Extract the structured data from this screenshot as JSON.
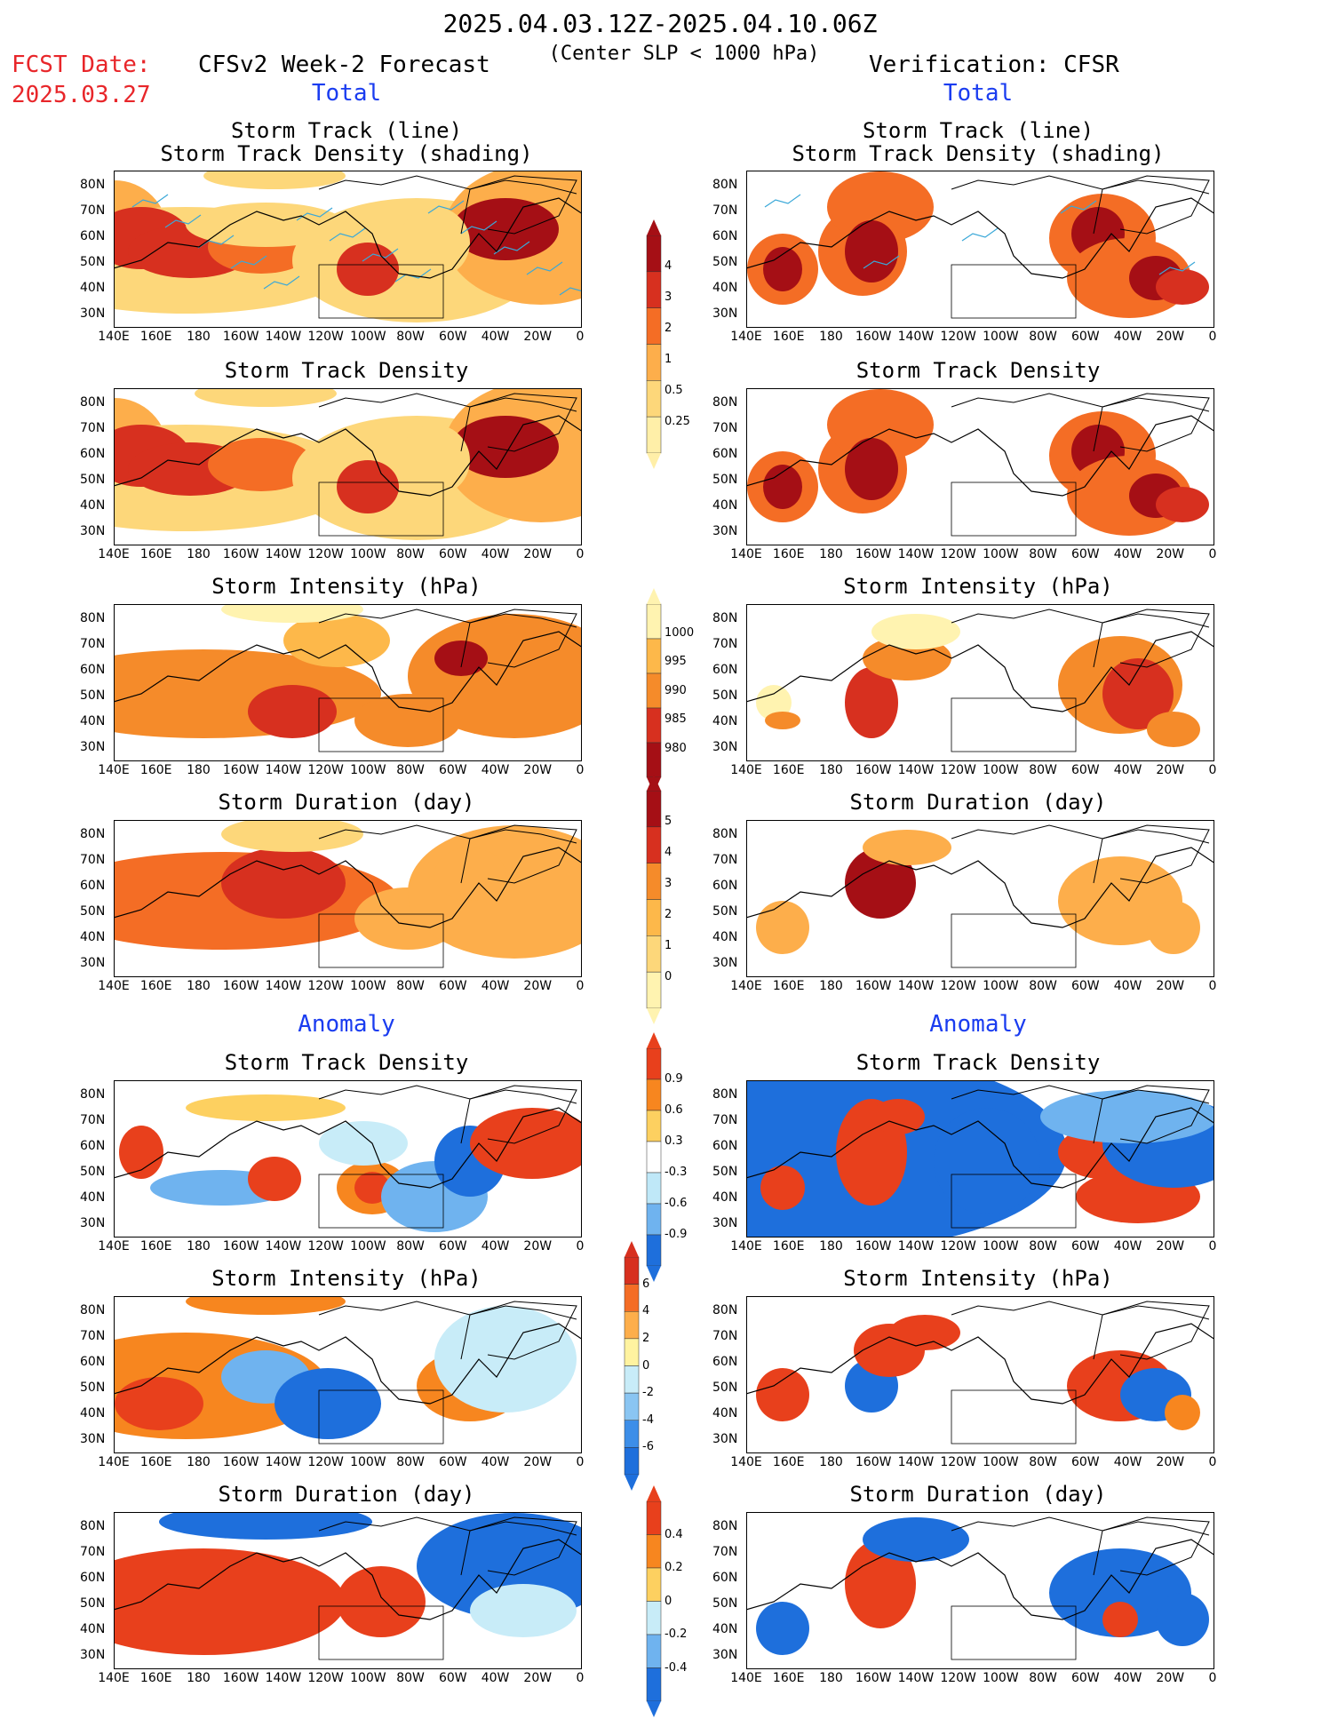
{
  "header": {
    "date_range": "2025.04.03.12Z-2025.04.10.06Z",
    "criterion": "(Center SLP < 1000 hPa)",
    "fcst_label": "FCST Date:",
    "fcst_date": "2025.03.27",
    "left_model": "CFSv2 Week-2 Forecast",
    "right_model": "Verification: CFSR",
    "total_left": "Total",
    "total_right": "Total",
    "anomaly_left": "Anomaly",
    "anomaly_right": "Anomaly"
  },
  "panel_titles": {
    "track_line": "Storm Track (line)",
    "track_density_shading": "Storm Track Density (shading)",
    "track_density": "Storm Track Density",
    "intensity": "Storm Intensity (hPa)",
    "duration": "Storm Duration (day)"
  },
  "axes": {
    "x_ticks": [
      "140E",
      "160E",
      "180",
      "160W",
      "140W",
      "120W",
      "100W",
      "80W",
      "60W",
      "40W",
      "20W",
      "0"
    ],
    "y_ticks": [
      "80N",
      "70N",
      "60N",
      "50N",
      "40N",
      "30N"
    ]
  },
  "colorbars": {
    "density": {
      "labels": [
        "4",
        "3",
        "2",
        "1",
        "0.5",
        "0.25"
      ],
      "colors": [
        "#a50f15",
        "#d7301f",
        "#f46d25",
        "#fdae4b",
        "#fdd77a",
        "#ffefa8"
      ]
    },
    "intensity": {
      "labels": [
        "1000",
        "995",
        "990",
        "985",
        "980"
      ],
      "colors": [
        "#fff3b0",
        "#fdb84a",
        "#f58b2a",
        "#d7301f",
        "#a50f15"
      ]
    },
    "duration": {
      "labels": [
        "5",
        "4",
        "3",
        "2",
        "1",
        "0"
      ],
      "colors": [
        "#a50f15",
        "#d7301f",
        "#f58b2a",
        "#fdb84a",
        "#fdd77a",
        "#fff3b0"
      ]
    },
    "anom_density": {
      "labels": [
        "0.9",
        "0.6",
        "0.3",
        "-0.3",
        "-0.6",
        "-0.9"
      ],
      "colors": [
        "#e8401c",
        "#f7861f",
        "#fdd060",
        "#ffffff",
        "#bfe8f8",
        "#6fb3ef",
        "#1e6fdc"
      ]
    },
    "anom_intensity": {
      "labels": [
        "6",
        "4",
        "2",
        "0",
        "-2",
        "-4",
        "-6"
      ],
      "colors": [
        "#d7301f",
        "#f46d25",
        "#fdae4b",
        "#fff3a0",
        "#c8ecf8",
        "#8ac5f2",
        "#3d8ee8",
        "#1e6fdc"
      ]
    },
    "anom_duration": {
      "labels": [
        "0.4",
        "0.2",
        "0",
        "-0.2",
        "-0.4"
      ],
      "colors": [
        "#e8401c",
        "#f7861f",
        "#fdd060",
        "#c8ecf8",
        "#6fb3ef",
        "#1e6fdc"
      ]
    }
  },
  "chart_data": [
    {
      "type": "heatmap",
      "panel": "fcst-total-track",
      "title": "Storm Track (line) Storm Track Density (shading)",
      "xlim": [
        "140E",
        "0"
      ],
      "ylim": [
        "25N",
        "85N"
      ]
    },
    {
      "type": "heatmap",
      "panel": "cfsr-total-track",
      "title": "Storm Track (line) Storm Track Density (shading)",
      "xlim": [
        "140E",
        "0"
      ],
      "ylim": [
        "25N",
        "85N"
      ]
    },
    {
      "type": "heatmap",
      "panel": "fcst-total-density",
      "title": "Storm Track Density"
    },
    {
      "type": "heatmap",
      "panel": "cfsr-total-density",
      "title": "Storm Track Density"
    },
    {
      "type": "heatmap",
      "panel": "fcst-total-intensity",
      "title": "Storm Intensity (hPa)"
    },
    {
      "type": "heatmap",
      "panel": "cfsr-total-intensity",
      "title": "Storm Intensity (hPa)"
    },
    {
      "type": "heatmap",
      "panel": "fcst-total-duration",
      "title": "Storm Duration (day)"
    },
    {
      "type": "heatmap",
      "panel": "cfsr-total-duration",
      "title": "Storm Duration (day)"
    },
    {
      "type": "heatmap",
      "panel": "fcst-anom-density",
      "title": "Storm Track Density"
    },
    {
      "type": "heatmap",
      "panel": "cfsr-anom-density",
      "title": "Storm Track Density"
    },
    {
      "type": "heatmap",
      "panel": "fcst-anom-intensity",
      "title": "Storm Intensity (hPa)"
    },
    {
      "type": "heatmap",
      "panel": "cfsr-anom-intensity",
      "title": "Storm Intensity (hPa)"
    },
    {
      "type": "heatmap",
      "panel": "fcst-anom-duration",
      "title": "Storm Duration (day)"
    },
    {
      "type": "heatmap",
      "panel": "cfsr-anom-duration",
      "title": "Storm Duration (day)"
    }
  ]
}
